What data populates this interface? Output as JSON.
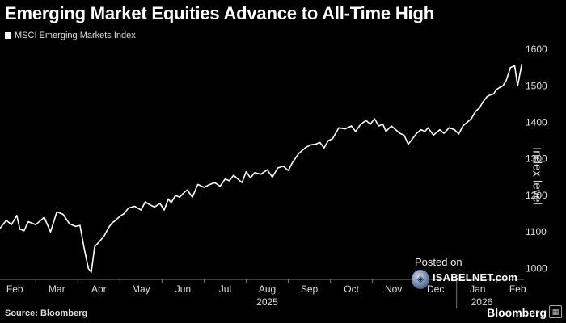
{
  "header": {
    "title": "Emerging Market Equities Advance to All-Time High",
    "legend_label": "MSCI Emerging Markets Index"
  },
  "footer": {
    "source": "Source: Bloomberg",
    "brand": "Bloomberg"
  },
  "watermark": {
    "posted": "Posted on",
    "site": "ISABELNET.com"
  },
  "chart_data": {
    "type": "line",
    "title": "Emerging Market Equities Advance to All-Time High",
    "ylabel": "Index level",
    "xlabel": "",
    "ylim": [
      970,
      1620
    ],
    "yticks": [
      1000,
      1100,
      1200,
      1300,
      1400,
      1500,
      1600
    ],
    "xticks": [
      "Feb",
      "Mar",
      "Apr",
      "May",
      "Jun",
      "Jul",
      "Aug",
      "Sep",
      "Oct",
      "Nov",
      "Dec",
      "Jan",
      "Feb"
    ],
    "xtick_t": [
      0.5,
      1.5,
      2.5,
      3.5,
      4.5,
      5.5,
      6.5,
      7.5,
      8.5,
      9.5,
      10.5,
      11.5,
      12.45
    ],
    "year_labels": [
      {
        "label": "2025",
        "t": 6.5
      },
      {
        "label": "2026",
        "t": 11.6
      }
    ],
    "xlim": [
      0.15,
      12.6
    ],
    "grid": false,
    "legend": "top-left",
    "series": [
      {
        "name": "MSCI Emerging Markets Index",
        "color": "#ffffff",
        "t": [
          0.15,
          0.3,
          0.42,
          0.55,
          0.62,
          0.72,
          0.82,
          1.0,
          1.2,
          1.35,
          1.5,
          1.65,
          1.8,
          1.95,
          2.05,
          2.15,
          2.25,
          2.32,
          2.4,
          2.5,
          2.62,
          2.72,
          2.8,
          2.9,
          3.0,
          3.1,
          3.2,
          3.35,
          3.5,
          3.6,
          3.7,
          3.82,
          3.95,
          4.05,
          4.15,
          4.22,
          4.32,
          4.42,
          4.5,
          4.6,
          4.72,
          4.85,
          5.0,
          5.1,
          5.25,
          5.38,
          5.5,
          5.6,
          5.7,
          5.8,
          5.9,
          6.0,
          6.1,
          6.2,
          6.35,
          6.5,
          6.62,
          6.75,
          6.88,
          7.0,
          7.1,
          7.25,
          7.4,
          7.52,
          7.65,
          7.75,
          7.85,
          7.95,
          8.05,
          8.2,
          8.35,
          8.5,
          8.6,
          8.72,
          8.85,
          8.95,
          9.05,
          9.15,
          9.25,
          9.32,
          9.45,
          9.55,
          9.65,
          9.75,
          9.85,
          9.95,
          10.05,
          10.15,
          10.25,
          10.32,
          10.45,
          10.6,
          10.7,
          10.82,
          10.95,
          11.05,
          11.15,
          11.25,
          11.35,
          11.45,
          11.55,
          11.62,
          11.72,
          11.8,
          11.88,
          11.95,
          12.02,
          12.1,
          12.18,
          12.28,
          12.38,
          12.45,
          12.55
        ],
        "values": [
          1110,
          1132,
          1120,
          1145,
          1108,
          1103,
          1128,
          1120,
          1140,
          1100,
          1155,
          1148,
          1122,
          1115,
          1118,
          1055,
          1000,
          990,
          1060,
          1072,
          1088,
          1110,
          1123,
          1132,
          1143,
          1150,
          1165,
          1170,
          1160,
          1182,
          1175,
          1168,
          1178,
          1160,
          1190,
          1180,
          1200,
          1195,
          1205,
          1215,
          1195,
          1230,
          1222,
          1228,
          1235,
          1225,
          1245,
          1240,
          1255,
          1245,
          1235,
          1265,
          1248,
          1262,
          1258,
          1270,
          1250,
          1275,
          1280,
          1268,
          1290,
          1315,
          1330,
          1338,
          1340,
          1345,
          1330,
          1350,
          1355,
          1385,
          1382,
          1390,
          1375,
          1395,
          1405,
          1395,
          1410,
          1390,
          1395,
          1375,
          1390,
          1380,
          1370,
          1365,
          1340,
          1355,
          1370,
          1380,
          1375,
          1385,
          1365,
          1380,
          1370,
          1385,
          1380,
          1368,
          1390,
          1400,
          1410,
          1430,
          1440,
          1455,
          1470,
          1475,
          1478,
          1490,
          1495,
          1500,
          1515,
          1550,
          1555,
          1500,
          1560
        ]
      }
    ]
  }
}
